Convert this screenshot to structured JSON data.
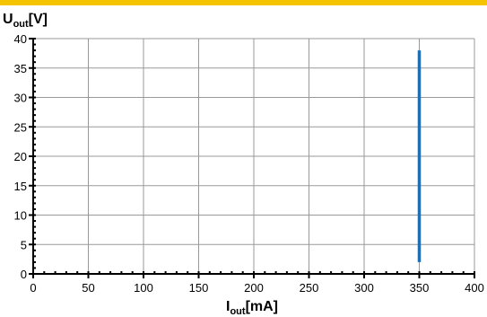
{
  "colors": {
    "accent_bar": "#f5c400",
    "series": "#1f6fb4",
    "grid": "#999999",
    "axis": "#000000"
  },
  "chart_data": {
    "type": "line",
    "title": "",
    "ylabel": {
      "main": "U",
      "sub": "out",
      "unit": "[V]"
    },
    "xlabel": {
      "main": "I",
      "sub": "out",
      "unit": "[mA]"
    },
    "xlim": [
      0,
      400
    ],
    "ylim": [
      0,
      40
    ],
    "x_ticks": [
      0,
      50,
      100,
      150,
      200,
      250,
      300,
      350,
      400
    ],
    "y_ticks": [
      0,
      5,
      10,
      15,
      20,
      25,
      30,
      35,
      40
    ],
    "x_tick_labels": [
      "0",
      "50",
      "100",
      "150",
      "200",
      "250",
      "300",
      "350",
      "400"
    ],
    "y_tick_labels": [
      "0",
      "5",
      "10",
      "15",
      "20",
      "25",
      "30",
      "35",
      "40"
    ],
    "grid": true,
    "series": [
      {
        "x": [
          350,
          350
        ],
        "y": [
          2,
          38
        ]
      }
    ]
  }
}
